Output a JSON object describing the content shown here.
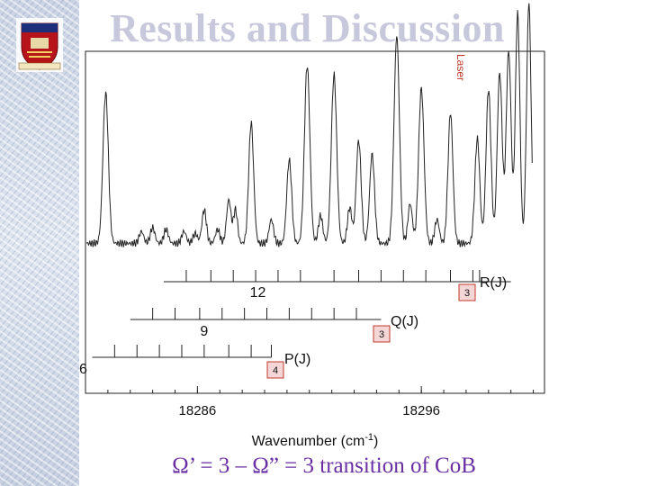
{
  "slide": {
    "title": "Results and Discussion",
    "caption": "Ω’ = 3 – Ω” = 3 transition of CoB"
  },
  "colors": {
    "title": "#c8c8dc",
    "caption": "#6a2fa3",
    "box_border": "#c0392b",
    "box_fill": "#f4d6d6",
    "trace": "#222222"
  },
  "chart_data": {
    "type": "line",
    "xlabel": "Wavenumber (cm",
    "xlabel_sup": "-1",
    "xlabel_end": ")",
    "xlim": [
      18281.0,
      18301.5
    ],
    "xticks": [
      {
        "value": 18286,
        "label": "18286"
      },
      {
        "value": 18296,
        "label": "18296"
      }
    ],
    "minor_step": 1,
    "laser_label": "Laser",
    "laser_x": 18300.8,
    "spectrum": {
      "baseline": 0.03,
      "peaks": [
        {
          "x": 18281.9,
          "h": 0.76,
          "w": 0.12
        },
        {
          "x": 18283.5,
          "h": 0.06,
          "w": 0.1
        },
        {
          "x": 18284.0,
          "h": 0.08,
          "w": 0.1
        },
        {
          "x": 18284.6,
          "h": 0.07,
          "w": 0.1
        },
        {
          "x": 18285.4,
          "h": 0.06,
          "w": 0.1
        },
        {
          "x": 18285.9,
          "h": 0.05,
          "w": 0.1
        },
        {
          "x": 18286.3,
          "h": 0.17,
          "w": 0.1
        },
        {
          "x": 18286.9,
          "h": 0.07,
          "w": 0.1
        },
        {
          "x": 18287.4,
          "h": 0.22,
          "w": 0.1
        },
        {
          "x": 18287.7,
          "h": 0.17,
          "w": 0.09
        },
        {
          "x": 18288.4,
          "h": 0.61,
          "w": 0.11
        },
        {
          "x": 18289.3,
          "h": 0.12,
          "w": 0.1
        },
        {
          "x": 18290.1,
          "h": 0.42,
          "w": 0.11
        },
        {
          "x": 18290.9,
          "h": 0.9,
          "w": 0.12
        },
        {
          "x": 18291.5,
          "h": 0.14,
          "w": 0.1
        },
        {
          "x": 18292.1,
          "h": 0.85,
          "w": 0.12
        },
        {
          "x": 18292.8,
          "h": 0.18,
          "w": 0.1
        },
        {
          "x": 18293.2,
          "h": 0.52,
          "w": 0.11
        },
        {
          "x": 18293.8,
          "h": 0.45,
          "w": 0.11
        },
        {
          "x": 18294.9,
          "h": 1.05,
          "w": 0.12
        },
        {
          "x": 18295.5,
          "h": 0.2,
          "w": 0.1
        },
        {
          "x": 18296.0,
          "h": 0.78,
          "w": 0.12
        },
        {
          "x": 18296.7,
          "h": 0.12,
          "w": 0.1
        },
        {
          "x": 18297.3,
          "h": 0.66,
          "w": 0.11
        },
        {
          "x": 18298.5,
          "h": 0.53,
          "w": 0.11
        },
        {
          "x": 18299.0,
          "h": 0.78,
          "w": 0.11
        },
        {
          "x": 18299.5,
          "h": 0.86,
          "w": 0.11
        },
        {
          "x": 18299.9,
          "h": 0.97,
          "w": 0.11
        },
        {
          "x": 18300.3,
          "h": 1.16,
          "w": 0.1
        },
        {
          "x": 18300.8,
          "h": 1.22,
          "w": 0.1
        }
      ]
    },
    "ladders": [
      {
        "name": "R(J)",
        "x_start": 18284.5,
        "x_end": 18300.0,
        "ticks": [
          18285.5,
          18286.6,
          18287.6,
          18288.6,
          18289.6,
          18290.6,
          18292.1,
          18293.2,
          18294.2,
          18295.2,
          18296.2,
          18297.3,
          18298.3,
          18298.6
        ],
        "labels": [
          {
            "text": "12",
            "at": 18288.7
          }
        ],
        "boxed_label": "3"
      },
      {
        "name": "Q(J)",
        "x_start": 18283.0,
        "x_end": 18294.2,
        "ticks": [
          18284.0,
          18285.0,
          18286.1,
          18287.1,
          18288.1,
          18289.1,
          18290.1,
          18291.1,
          18292.1,
          18293.1
        ],
        "labels": [
          {
            "text": "9",
            "at": 18286.3
          }
        ],
        "boxed_label": "3"
      },
      {
        "name": "P(J)",
        "x_start": 18281.3,
        "x_end": 18289.3,
        "ticks": [
          18282.3,
          18283.3,
          18284.3,
          18285.3,
          18286.3,
          18287.4,
          18288.4,
          18289.3
        ],
        "labels": [
          {
            "text": "6",
            "at": 18281.3
          }
        ],
        "boxed_label": "4"
      }
    ]
  }
}
